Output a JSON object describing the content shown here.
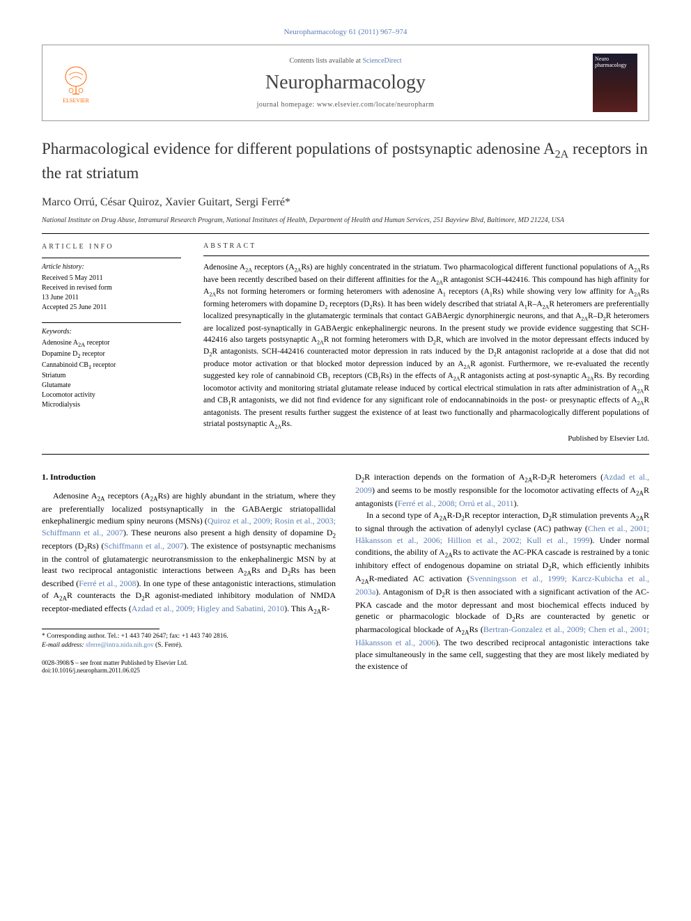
{
  "citation": "Neuropharmacology 61 (2011) 967–974",
  "header": {
    "publisher": "ELSEVIER",
    "contents_prefix": "Contents lists available at ",
    "contents_link": "ScienceDirect",
    "journal": "Neuropharmacology",
    "homepage_prefix": "journal homepage: ",
    "homepage_url": "www.elsevier.com/locate/neuropharm",
    "cover_label": "Neuro pharmacology"
  },
  "title_html": "Pharmacological evidence for different populations of postsynaptic adenosine A<sub>2A</sub> receptors in the rat striatum",
  "authors": "Marco Orrú, César Quiroz, Xavier Guitart, Sergi Ferré*",
  "affiliation": "National Institute on Drug Abuse, Intramural Research Program, National Institutes of Health, Department of Health and Human Services, 251 Bayview Blvd, Baltimore, MD 21224, USA",
  "article_info": {
    "heading": "ARTICLE INFO",
    "history_head": "Article history:",
    "history": [
      "Received 5 May 2011",
      "Received in revised form",
      "13 June 2011",
      "Accepted 25 June 2011"
    ],
    "keywords_head": "Keywords:",
    "keywords": [
      "Adenosine A2A receptor",
      "Dopamine D2 receptor",
      "Cannabinoid CB1 receptor",
      "Striatum",
      "Glutamate",
      "Locomotor activity",
      "Microdialysis"
    ]
  },
  "abstract": {
    "heading": "ABSTRACT",
    "text_html": "Adenosine A<sub>2A</sub> receptors (A<sub>2A</sub>Rs) are highly concentrated in the striatum. Two pharmacological different functional populations of A<sub>2A</sub>Rs have been recently described based on their different affinities for the A<sub>2A</sub>R antagonist SCH-442416. This compound has high affinity for A<sub>2A</sub>Rs not forming heteromers or forming heteromers with adenosine A<sub>1</sub> receptors (A<sub>1</sub>Rs) while showing very low affinity for A<sub>2A</sub>Rs forming heteromers with dopamine D<sub>2</sub> receptors (D<sub>2</sub>Rs). It has been widely described that striatal A<sub>1</sub>R–A<sub>2A</sub>R heteromers are preferentially localized presynaptically in the glutamatergic terminals that contact GABAergic dynorphinergic neurons, and that A<sub>2A</sub>R–D<sub>2</sub>R heteromers are localized post-synaptically in GABAergic enkephalinergic neurons. In the present study we provide evidence suggesting that SCH-442416 also targets postsynaptic A<sub>2A</sub>R not forming heteromers with D<sub>2</sub>R, which are involved in the motor depressant effects induced by D<sub>2</sub>R antagonists. SCH-442416 counteracted motor depression in rats induced by the D<sub>2</sub>R antagonist raclopride at a dose that did not produce motor activation or that blocked motor depression induced by an A<sub>2A</sub>R agonist. Furthermore, we re-evaluated the recently suggested key role of cannabinoid CB<sub>1</sub> receptors (CB<sub>1</sub>Rs) in the effects of A<sub>2A</sub>R antagonists acting at post-synaptic A<sub>2A</sub>Rs. By recording locomotor activity and monitoring striatal glutamate release induced by cortical electrical stimulation in rats after administration of A<sub>2A</sub>R and CB<sub>1</sub>R antagonists, we did not find evidence for any significant role of endocannabinoids in the post- or presynaptic effects of A<sub>2A</sub>R antagonists. The present results further suggest the existence of at least two functionally and pharmacologically different populations of striatal postsynaptic A<sub>2A</sub>Rs.",
    "publisher_line": "Published by Elsevier Ltd."
  },
  "intro": {
    "heading": "1. Introduction",
    "col1_html": "Adenosine A<sub>2A</sub> receptors (A<sub>2A</sub>Rs) are highly abundant in the striatum, where they are preferentially localized postsynaptically in the GABAergic striatopallidal enkephalinergic medium spiny neurons (MSNs) (<a>Quiroz et al., 2009; Rosin et al., 2003; Schiffmann et al., 2007</a>). These neurons also present a high density of dopamine D<sub>2</sub> receptors (D<sub>2</sub>Rs) (<a>Schiffmann et al., 2007</a>). The existence of postsynaptic mechanisms in the control of glutamatergic neurotransmission to the enkephalinergic MSN by at least two reciprocal antagonistic interactions between A<sub>2A</sub>Rs and D<sub>2</sub>Rs has been described (<a>Ferré et al., 2008</a>). In one type of these antagonistic interactions, stimulation of A<sub>2A</sub>R counteracts the D<sub>2</sub>R agonist-mediated inhibitory modulation of NMDA receptor-mediated effects (<a>Azdad et al., 2009; Higley and Sabatini, 2010</a>). This A<sub>2A</sub>R-",
    "col2_p1_html": "D<sub>2</sub>R interaction depends on the formation of A<sub>2A</sub>R-D<sub>2</sub>R heteromers (<a>Azdad et al., 2009</a>) and seems to be mostly responsible for the locomotor activating effects of A<sub>2A</sub>R antagonists (<a>Ferré et al., 2008; Orrú et al., 2011</a>).",
    "col2_p2_html": "In a second type of A<sub>2A</sub>R-D<sub>2</sub>R receptor interaction, D<sub>2</sub>R stimulation prevents A<sub>2A</sub>R to signal through the activation of adenylyl cyclase (AC) pathway (<a>Chen et al., 2001; Håkansson et al., 2006; Hillion et al., 2002; Kull et al., 1999</a>). Under normal conditions, the ability of A<sub>2A</sub>Rs to activate the AC-PKA cascade is restrained by a tonic inhibitory effect of endogenous dopamine on striatal D<sub>2</sub>R, which efficiently inhibits A<sub>2A</sub>R-mediated AC activation (<a>Svenningsson et al., 1999; Karcz-Kubicha et al., 2003a</a>). Antagonism of D<sub>2</sub>R is then associated with a significant activation of the AC-PKA cascade and the motor depressant and most biochemical effects induced by genetic or pharmacologic blockade of D<sub>2</sub>Rs are counteracted by genetic or pharmacological blockade of A<sub>2A</sub>Rs (<a>Bertran-Gonzalez et al., 2009; Chen et al., 2001; Håkansson et al., 2006</a>). The two described reciprocal antagonistic interactions take place simultaneously in the same cell, suggesting that they are most likely mediated by the existence of"
  },
  "corresponding": {
    "line1": "* Corresponding author. Tel.: +1 443 740 2647; fax: +1 443 740 2816.",
    "line2_prefix": "E-mail address: ",
    "email": "sferre@intra.nida.nih.gov",
    "line2_suffix": " (S. Ferré)."
  },
  "footer": {
    "issn": "0028-3908/$ – see front matter Published by Elsevier Ltd.",
    "doi": "doi:10.1016/j.neuropharm.2011.06.025"
  },
  "colors": {
    "link": "#5b7eb5",
    "text": "#000000",
    "elsevier": "#ff6600"
  }
}
